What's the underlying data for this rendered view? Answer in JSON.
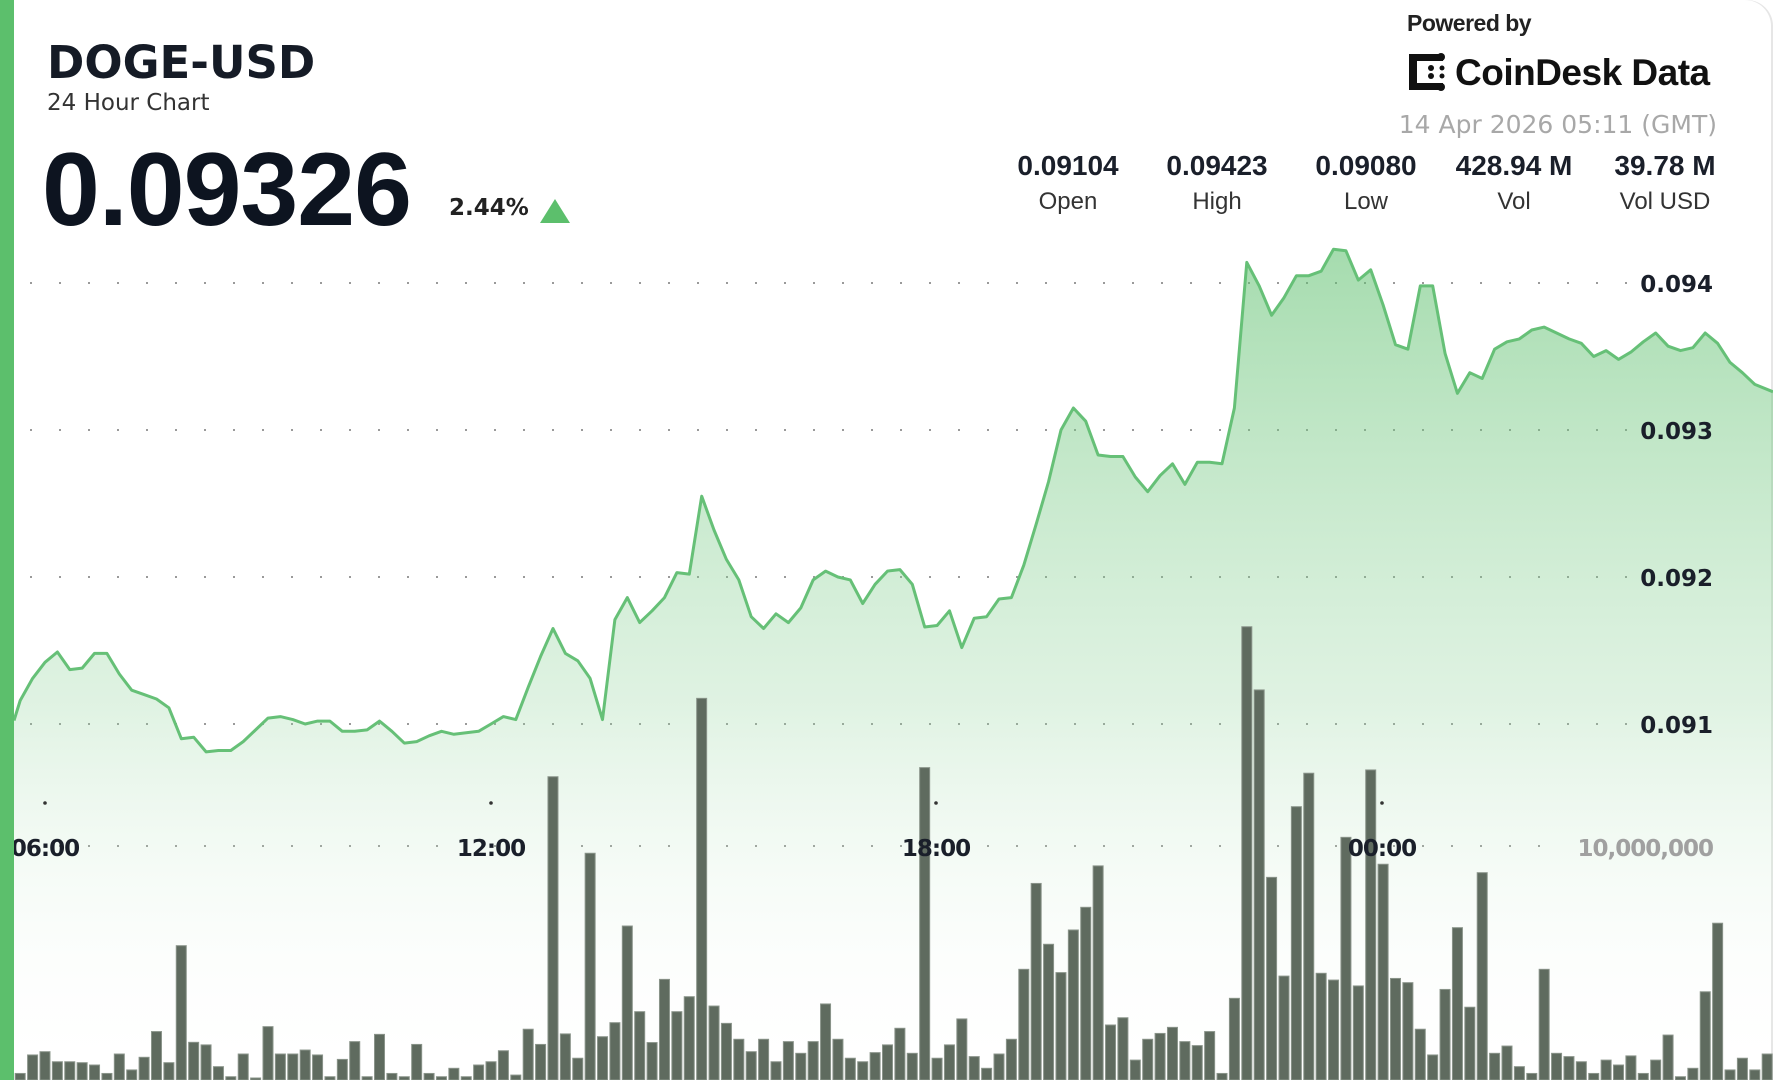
{
  "header": {
    "symbol": "DOGE-USD",
    "subtitle": "24 Hour Chart",
    "price": "0.09326",
    "change": "2.44%",
    "change_direction_icon": "triangle-up-icon",
    "powered_by": "Powered by",
    "brand": "CoinDesk Data",
    "timestamp": "14 Apr 2026 05:11 (GMT)"
  },
  "stats": [
    {
      "value": "0.09104",
      "label": "Open"
    },
    {
      "value": "0.09423",
      "label": "High"
    },
    {
      "value": "0.09080",
      "label": "Low"
    },
    {
      "value": "428.94 M",
      "label": "Vol"
    },
    {
      "value": "39.78 M",
      "label": "Vol USD"
    }
  ],
  "colors": {
    "accent": "#5cbf6c",
    "line": "#66c077",
    "volume_bar": "#5f6b5f",
    "text": "#151b26",
    "muted": "#a8a8a8"
  },
  "chart_data": {
    "type": "area",
    "title": "",
    "xlabel": "",
    "ylabel": "",
    "x_ticks": [
      "06:00",
      "12:00",
      "18:00",
      "00:00"
    ],
    "y_ticks": [
      "0.094",
      "0.093",
      "0.092",
      "0.091"
    ],
    "y_tick_values": [
      0.094,
      0.093,
      0.092,
      0.091
    ],
    "ylim": [
      0.0903,
      0.0945
    ],
    "grid": true,
    "price_series": [
      0.09116,
      0.09131,
      0.09142,
      0.09149,
      0.09137,
      0.09138,
      0.09148,
      0.09148,
      0.09134,
      0.09123,
      0.0912,
      0.09117,
      0.09111,
      0.0909,
      0.09091,
      0.09081,
      0.09082,
      0.09082,
      0.09088,
      0.09096,
      0.09104,
      0.09105,
      0.09103,
      0.091,
      0.09102,
      0.09102,
      0.09095,
      0.09095,
      0.09096,
      0.09102,
      0.09095,
      0.09087,
      0.09088,
      0.09092,
      0.09095,
      0.09093,
      0.09094,
      0.09095,
      0.091,
      0.09105,
      0.09103,
      0.09125,
      0.09146,
      0.09165,
      0.09148,
      0.09143,
      0.09131,
      0.09103,
      0.09171,
      0.09186,
      0.09169,
      0.09177,
      0.09186,
      0.09203,
      0.09202,
      0.09255,
      0.09232,
      0.09212,
      0.09198,
      0.09173,
      0.09165,
      0.09175,
      0.09169,
      0.09179,
      0.09198,
      0.09204,
      0.092,
      0.09198,
      0.09182,
      0.09195,
      0.09204,
      0.09205,
      0.09195,
      0.09166,
      0.09167,
      0.09177,
      0.09152,
      0.09172,
      0.09173,
      0.09185,
      0.09186,
      0.09208,
      0.09236,
      0.09265,
      0.093,
      0.09315,
      0.09306,
      0.09283,
      0.09282,
      0.09282,
      0.09268,
      0.09258,
      0.09269,
      0.09277,
      0.09263,
      0.09278,
      0.09278,
      0.09277,
      0.09315,
      0.09414,
      0.09398,
      0.09378,
      0.0939,
      0.09405,
      0.09405,
      0.09408,
      0.09423,
      0.09422,
      0.09402,
      0.09409,
      0.09385,
      0.09358,
      0.09355,
      0.09398,
      0.09398,
      0.09352,
      0.09325,
      0.09339,
      0.09335,
      0.09355,
      0.0936,
      0.09362,
      0.09368,
      0.0937,
      0.09366,
      0.09362,
      0.09359,
      0.0935,
      0.09354,
      0.09348,
      0.09353,
      0.0936,
      0.09366,
      0.09357,
      0.09354,
      0.09356,
      0.09366,
      0.09359,
      0.09346,
      0.09339,
      0.09331,
      0.09326
    ],
    "volume_axis_label": "10,000,000",
    "volume_axis_value": 10000000,
    "volume_millions": [
      0.28,
      1.07,
      1.21,
      0.78,
      0.78,
      0.74,
      0.64,
      0.28,
      1.11,
      0.43,
      0.97,
      2.07,
      0.74,
      5.74,
      1.61,
      1.5,
      0.57,
      0.14,
      1.11,
      0.05,
      2.28,
      1.11,
      1.11,
      1.28,
      1.07,
      0.14,
      0.88,
      1.64,
      0.14,
      1.95,
      0.28,
      0.14,
      1.52,
      0.28,
      0.14,
      0.5,
      0.14,
      0.64,
      0.78,
      1.25,
      0.21,
      2.17,
      1.52,
      12.96,
      1.97,
      0.93,
      9.69,
      1.85,
      2.45,
      6.58,
      2.92,
      1.6,
      4.3,
      2.92,
      3.56,
      16.31,
      3.16,
      2.42,
      1.74,
      1.21,
      1.74,
      0.78,
      1.64,
      1.14,
      1.64,
      3.25,
      1.74,
      0.93,
      0.78,
      1.17,
      1.5,
      2.21,
      1.14,
      13.35,
      0.93,
      1.5,
      2.61,
      1.0,
      0.5,
      1.11,
      1.74,
      4.73,
      8.4,
      5.8,
      4.59,
      6.41,
      7.38,
      9.15,
      2.35,
      2.66,
      0.85,
      1.74,
      1.99,
      2.25,
      1.64,
      1.47,
      2.07,
      0.28,
      3.49,
      19.37,
      16.67,
      8.66,
      4.44,
      11.68,
      13.11,
      4.56,
      4.27,
      10.37,
      4.02,
      13.25,
      9.22,
      4.34,
      4.16,
      2.17,
      1.07,
      3.87,
      6.51,
      3.11,
      8.86,
      1.14,
      1.45,
      0.57,
      0.28,
      4.73,
      1.14,
      1.0,
      0.78,
      0.28,
      0.85,
      0.64,
      1.03,
      0.28,
      0.85,
      1.92,
      0.14,
      0.5,
      3.77,
      6.7,
      0.43,
      0.93,
      0.43,
      1.11
    ]
  }
}
